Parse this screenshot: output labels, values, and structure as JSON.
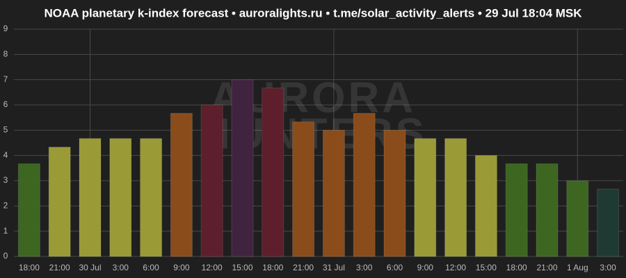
{
  "chart_data": {
    "type": "bar",
    "title": "NOAA planetary k-index forecast • auroralights.ru • t.me/solar_activity_alerts • 29 Jul 18:04 MSK",
    "watermark": [
      "AURORA",
      "HUNTERS"
    ],
    "categories": [
      "18:00",
      "21:00",
      "30 Jul",
      "3:00",
      "6:00",
      "9:00",
      "12:00",
      "15:00",
      "18:00",
      "21:00",
      "31 Jul",
      "3:00",
      "6:00",
      "9:00",
      "12:00",
      "15:00",
      "18:00",
      "21:00",
      "1 Aug",
      "3:00"
    ],
    "values": [
      3.67,
      4.33,
      4.67,
      4.67,
      4.67,
      5.67,
      6.0,
      7.0,
      6.67,
      5.33,
      5.0,
      5.67,
      5.0,
      4.67,
      4.67,
      4.0,
      3.67,
      3.67,
      3.0,
      2.67
    ],
    "colors": [
      "#3d6621",
      "#9a9a37",
      "#9a9a37",
      "#9a9a37",
      "#9a9a37",
      "#8a4c1b",
      "#5c1f2b",
      "#40243f",
      "#5c1f2b",
      "#8a4c1b",
      "#8a4c1b",
      "#8a4c1b",
      "#8a4c1b",
      "#9a9a37",
      "#9a9a37",
      "#9a9a37",
      "#3d6621",
      "#3d6621",
      "#3d6621",
      "#1f3a33"
    ],
    "ylim": [
      0,
      9
    ],
    "yticks": [
      0,
      1,
      2,
      3,
      4,
      5,
      6,
      7,
      8,
      9
    ],
    "grid": true
  }
}
